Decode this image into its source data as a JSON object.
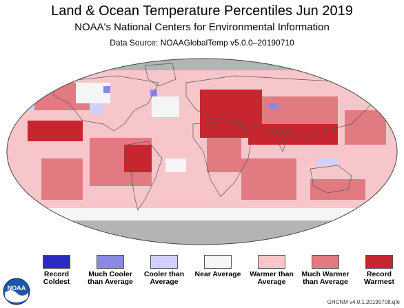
{
  "header": {
    "title": "Land & Ocean Temperature Percentiles Jun 2019",
    "subtitle": "NOAA's National Centers for Environmental Information",
    "source": "Data Source: NOAAGlobalTemp v5.0.0–20190710"
  },
  "legend": [
    {
      "label": "Record Coldest",
      "color": "#2b2bc4"
    },
    {
      "label": "Much Cooler than Average",
      "color": "#8a8ae6"
    },
    {
      "label": "Cooler than Average",
      "color": "#d0d0fa"
    },
    {
      "label": "Near Average",
      "color": "#f5f5f5"
    },
    {
      "label": "Warmer than Average",
      "color": "#f7c6cb"
    },
    {
      "label": "Much Warmer than Average",
      "color": "#e27a82"
    },
    {
      "label": "Record Warmest",
      "color": "#c8262e"
    }
  ],
  "colors": {
    "no_data": "#b4b4b4",
    "ocean_background": "#f7c6cb"
  },
  "footer": {
    "version": "GHCNM v4.0.1.20190708.qfe"
  },
  "logo": {
    "name": "noaa-logo",
    "text": "NOAA"
  }
}
